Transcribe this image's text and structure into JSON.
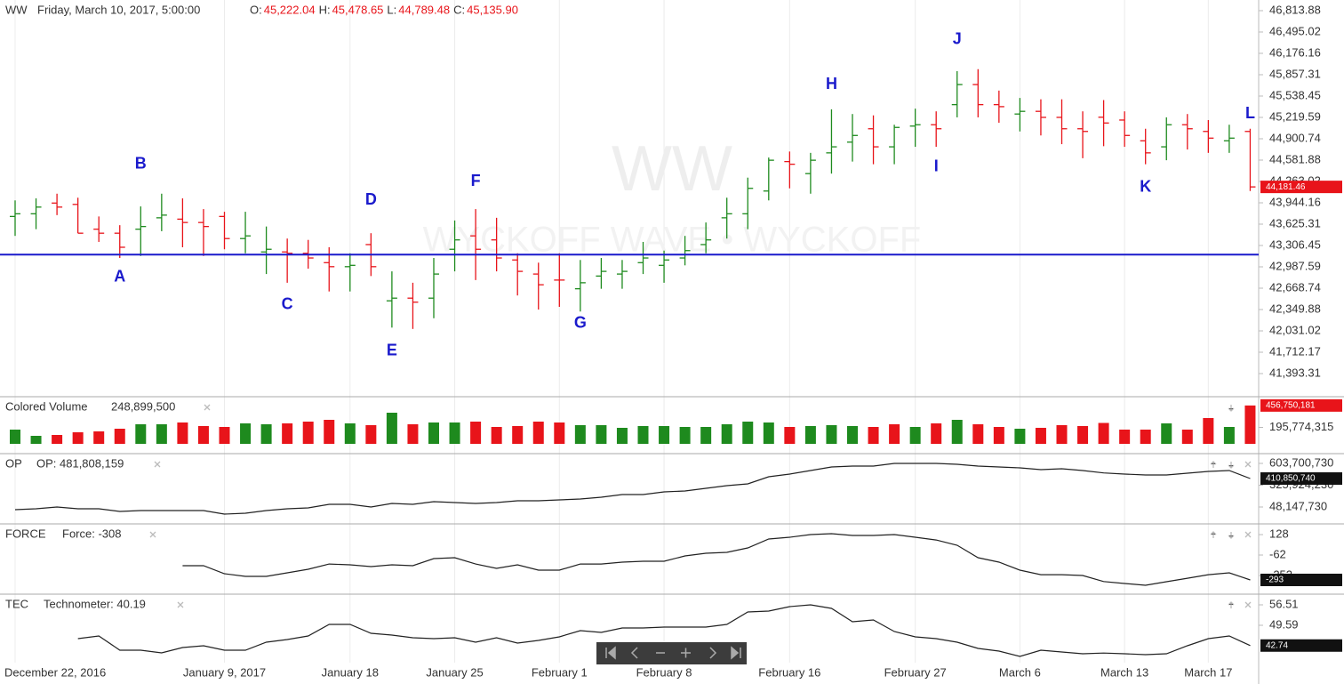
{
  "chart_data": [
    {
      "type": "ohlc",
      "title": "WW",
      "subtitle": "Friday, March 10, 2017, 5:00:00",
      "ohlc_readout": [
        {
          "label": "O:",
          "value": "45,222.04"
        },
        {
          "label": "H:",
          "value": "45,478.65"
        },
        {
          "label": "L:",
          "value": "44,789.48"
        },
        {
          "label": "C:",
          "value": "45,135.90"
        }
      ],
      "watermark": "WW",
      "watermark_sub": "WYCKOFF WAVE • WYCKOFF",
      "categories": [
        "December 22, 2016",
        null,
        null,
        null,
        null,
        null,
        null,
        null,
        null,
        null,
        "January 9, 2017",
        null,
        null,
        null,
        null,
        null,
        "January 18",
        null,
        null,
        null,
        null,
        "January 25",
        null,
        null,
        null,
        null,
        "February 1",
        null,
        null,
        null,
        null,
        "February 8",
        null,
        null,
        null,
        null,
        null,
        "February 16",
        null,
        null,
        null,
        null,
        null,
        "February 27",
        null,
        null,
        null,
        null,
        "March 6",
        null,
        null,
        null,
        null,
        "March 13",
        null,
        null,
        null,
        "March 17",
        null,
        null
      ],
      "high": [
        43980,
        44010,
        44080,
        44020,
        43740,
        43610,
        43890,
        44080,
        44010,
        43850,
        43810,
        43810,
        43590,
        43410,
        43390,
        43280,
        43190,
        43490,
        42920,
        42750,
        43120,
        43680,
        43850,
        43720,
        43190,
        43050,
        43190,
        43090,
        43120,
        43090,
        43360,
        43230,
        43450,
        43650,
        44020,
        44320,
        44620,
        44710,
        44690,
        45340,
        45270,
        45250,
        45110,
        45350,
        45310,
        45910,
        45940,
        45620,
        45510,
        45490,
        45490,
        45310,
        45478.65,
        45310,
        45050,
        45220,
        45270,
        45180,
        45110,
        45050
      ],
      "low": [
        43450,
        43550,
        43760,
        43490,
        43360,
        43120,
        43150,
        43520,
        43280,
        43150,
        43250,
        43190,
        42880,
        42750,
        42960,
        42620,
        42620,
        42850,
        42080,
        42060,
        42220,
        42920,
        42790,
        42920,
        42560,
        42350,
        42390,
        42320,
        42660,
        42660,
        42880,
        42750,
        43010,
        43190,
        43410,
        43550,
        43980,
        44160,
        44080,
        44380,
        44560,
        44520,
        44520,
        44780,
        44780,
        45220,
        45220,
        45140,
        45010,
        44950,
        44820,
        44610,
        44789.48,
        44780,
        44520,
        44580,
        44740,
        44690,
        44690,
        44120
      ],
      "open": [
        43740,
        43780,
        43940,
        43920,
        43550,
        43490,
        43550,
        43720,
        43700,
        43650,
        43740,
        43410,
        43210,
        43210,
        43190,
        43050,
        42990,
        43320,
        42480,
        42520,
        42520,
        43250,
        43450,
        43390,
        43090,
        42880,
        42790,
        42660,
        42850,
        42880,
        43050,
        43010,
        43120,
        43320,
        43720,
        43780,
        44120,
        44560,
        44380,
        44690,
        44850,
        45050,
        44780,
        45090,
        45110,
        45410,
        45710,
        45410,
        45270,
        45310,
        45220,
        45050,
        45222.04,
        45180,
        44870,
        44780,
        45110,
        45010,
        44870,
        45010
      ],
      "close": [
        43780,
        43880,
        43880,
        43490,
        43490,
        43280,
        43590,
        43760,
        43650,
        43590,
        43410,
        43450,
        43250,
        43190,
        43120,
        42990,
        43010,
        42990,
        42520,
        42460,
        42880,
        43390,
        43250,
        43120,
        42920,
        42720,
        42790,
        42750,
        42920,
        42920,
        43120,
        43090,
        43230,
        43390,
        43780,
        44160,
        44580,
        44520,
        44580,
        44780,
        44950,
        44780,
        45070,
        45110,
        45050,
        45710,
        45410,
        45380,
        45310,
        45220,
        45050,
        45010,
        45135.9,
        44950,
        44690,
        45110,
        45050,
        44910,
        44910,
        44181.46
      ],
      "up_color": "#1e8a1e",
      "down_color": "#e8141a",
      "last_label": "44,181.46",
      "hline": 43170,
      "hline_color": "#1a1acc",
      "annotations": [
        {
          "text": "A",
          "index": 5,
          "y": 42830
        },
        {
          "text": "B",
          "index": 6,
          "y": 44520
        },
        {
          "text": "C",
          "index": 13,
          "y": 42420
        },
        {
          "text": "D",
          "index": 17,
          "y": 43980
        },
        {
          "text": "E",
          "index": 18,
          "y": 41730
        },
        {
          "text": "F",
          "index": 22,
          "y": 44260
        },
        {
          "text": "G",
          "index": 27,
          "y": 42140
        },
        {
          "text": "H",
          "index": 39,
          "y": 45710
        },
        {
          "text": "I",
          "index": 44,
          "y": 44480
        },
        {
          "text": "J",
          "index": 45,
          "y": 46380
        },
        {
          "text": "K",
          "index": 54,
          "y": 44170
        },
        {
          "text": "L",
          "index": 59,
          "y": 45270
        }
      ],
      "annotation_color": "#1a1acc",
      "ylim": [
        41048,
        46973
      ],
      "yticks": [
        {
          "value": 46813.88,
          "label": "46,813.88"
        },
        {
          "value": 46495.02,
          "label": "46,495.02"
        },
        {
          "value": 46176.16,
          "label": "46,176.16"
        },
        {
          "value": 45857.31,
          "label": "45,857.31"
        },
        {
          "value": 45538.45,
          "label": "45,538.45"
        },
        {
          "value": 45219.59,
          "label": "45,219.59"
        },
        {
          "value": 44900.74,
          "label": "44,900.74"
        },
        {
          "value": 44581.88,
          "label": "44,581.88"
        },
        {
          "value": 44263.02,
          "label": "44,263.02"
        },
        {
          "value": 43944.16,
          "label": "43,944.16"
        },
        {
          "value": 43625.31,
          "label": "43,625.31"
        },
        {
          "value": 43306.45,
          "label": "43,306.45"
        },
        {
          "value": 42987.59,
          "label": "42,987.59"
        },
        {
          "value": 42668.74,
          "label": "42,668.74"
        },
        {
          "value": 42349.88,
          "label": "42,349.88"
        },
        {
          "value": 42031.02,
          "label": "42,031.02"
        },
        {
          "value": 41712.17,
          "label": "41,712.17"
        },
        {
          "value": 41393.31,
          "label": "41,393.31"
        }
      ],
      "grid": "x"
    },
    {
      "type": "bar",
      "title": "Colored Volume",
      "readout": "248,899,500",
      "values": [
        169400000,
        95300000,
        105900000,
        137600000,
        148200000,
        180000000,
        232900000,
        232900000,
        254100000,
        211800000,
        201200000,
        243500000,
        232900000,
        243500000,
        264700000,
        285900000,
        243500000,
        222400000,
        370600000,
        232900000,
        254100000,
        254100000,
        264700000,
        201200000,
        211800000,
        264700000,
        254100000,
        222400000,
        222400000,
        190600000,
        211800000,
        211800000,
        201200000,
        201200000,
        232900000,
        264700000,
        254100000,
        201200000,
        211800000,
        222400000,
        211800000,
        201200000,
        232900000,
        201200000,
        243500000,
        285900000,
        232900000,
        201200000,
        180000000,
        190600000,
        222400000,
        211800000,
        248899500,
        169400000,
        169400000,
        243500000,
        169400000,
        307100000,
        201200000,
        456750181
      ],
      "colors": [
        "#1e8a1e",
        "#1e8a1e",
        "#e8141a",
        "#e8141a",
        "#e8141a",
        "#e8141a",
        "#1e8a1e",
        "#1e8a1e",
        "#e8141a",
        "#e8141a",
        "#e8141a",
        "#1e8a1e",
        "#1e8a1e",
        "#e8141a",
        "#e8141a",
        "#e8141a",
        "#1e8a1e",
        "#e8141a",
        "#1e8a1e",
        "#e8141a",
        "#1e8a1e",
        "#1e8a1e",
        "#e8141a",
        "#e8141a",
        "#e8141a",
        "#e8141a",
        "#e8141a",
        "#1e8a1e",
        "#1e8a1e",
        "#1e8a1e",
        "#1e8a1e",
        "#1e8a1e",
        "#1e8a1e",
        "#1e8a1e",
        "#1e8a1e",
        "#1e8a1e",
        "#1e8a1e",
        "#e8141a",
        "#1e8a1e",
        "#1e8a1e",
        "#1e8a1e",
        "#e8141a",
        "#e8141a",
        "#1e8a1e",
        "#e8141a",
        "#1e8a1e",
        "#e8141a",
        "#e8141a",
        "#1e8a1e",
        "#e8141a",
        "#e8141a",
        "#e8141a",
        "#e8141a",
        "#e8141a",
        "#e8141a",
        "#1e8a1e",
        "#e8141a",
        "#e8141a",
        "#1e8a1e",
        "#e8141a"
      ],
      "last_label": "456,750,181",
      "last_color": "#e8141a",
      "ylim": [
        0,
        540000000
      ],
      "yticks": [
        {
          "value": 195774315,
          "label": "195,774,315"
        }
      ]
    },
    {
      "type": "line",
      "title": "OP",
      "readout": "OP: 481,808,159",
      "color": "#222222",
      "values": [
        14100000,
        25500000,
        48100000,
        25500000,
        25500000,
        -8500000,
        2800000,
        2800000,
        2800000,
        2800000,
        -42600000,
        -31200000,
        2800000,
        25500000,
        36800000,
        82200000,
        82200000,
        48100000,
        93500000,
        82200000,
        116200000,
        104800000,
        93500000,
        104800000,
        127500000,
        127500000,
        138900000,
        150200000,
        172900000,
        206900000,
        206900000,
        240900000,
        252200000,
        286200000,
        320300000,
        343000000,
        433600000,
        467700000,
        513000000,
        558400000,
        569700000,
        569700000,
        603700000,
        603700000,
        603700000,
        592400000,
        569700000,
        558400000,
        547000000,
        524300000,
        535700000,
        513000000,
        481808159,
        467700000,
        456300000,
        456300000,
        479000000,
        501600000,
        513000000,
        410850740
      ],
      "last_label": "410,850,740",
      "last_color": "#111111",
      "ylim": [
        -155900000,
        705700000
      ],
      "yticks": [
        {
          "value": 603700730,
          "label": "603,700,730"
        },
        {
          "value": 325924230,
          "label": "325,924,230"
        },
        {
          "value": 48147730,
          "label": "48,147,730"
        }
      ]
    },
    {
      "type": "line",
      "title": "FORCE",
      "readout": "Force: -308",
      "color": "#222222",
      "values": [
        null,
        null,
        null,
        null,
        null,
        null,
        null,
        null,
        -161,
        -161,
        -235,
        -260,
        -260,
        -227,
        -194,
        -145,
        -153,
        -169,
        -153,
        -161,
        -95,
        -87,
        -145,
        -186,
        -153,
        -202,
        -202,
        -145,
        -145,
        -128,
        -120,
        -120,
        -70,
        -45,
        -37,
        4,
        87,
        103,
        128,
        136,
        120,
        120,
        128,
        103,
        78,
        29,
        -87,
        -128,
        -202,
        -244,
        -244,
        -252,
        -308,
        -326,
        -343,
        -310,
        -277,
        -244,
        -227,
        -293
      ],
      "last_label": "-293",
      "last_color": "#111111",
      "ylim": [
        -417,
        219
      ],
      "yticks": [
        128,
        -62,
        -252
      ]
    },
    {
      "type": "line",
      "title": "TEC",
      "readout": "Technometer: 40.19",
      "color": "#222222",
      "values": [
        null,
        null,
        null,
        45.08,
        45.98,
        41.16,
        41.16,
        40.26,
        42.07,
        42.67,
        41.16,
        41.16,
        43.87,
        44.78,
        45.98,
        49.89,
        49.89,
        46.88,
        46.28,
        45.38,
        45.08,
        45.38,
        43.87,
        45.38,
        43.57,
        44.47,
        45.68,
        47.78,
        47.18,
        48.69,
        48.69,
        48.99,
        48.99,
        48.99,
        49.89,
        54.1,
        54.4,
        55.91,
        56.51,
        55.31,
        50.79,
        51.39,
        47.48,
        45.68,
        45.08,
        43.87,
        41.77,
        40.86,
        39.06,
        41.16,
        40.56,
        39.96,
        40.19,
        39.96,
        39.66,
        39.96,
        42.67,
        45.08,
        45.98,
        42.74
      ],
      "last_label": "42.74",
      "last_color": "#111111",
      "ylim": [
        36.95,
        59.82
      ],
      "yticks": [
        56.51,
        49.59
      ]
    }
  ]
}
